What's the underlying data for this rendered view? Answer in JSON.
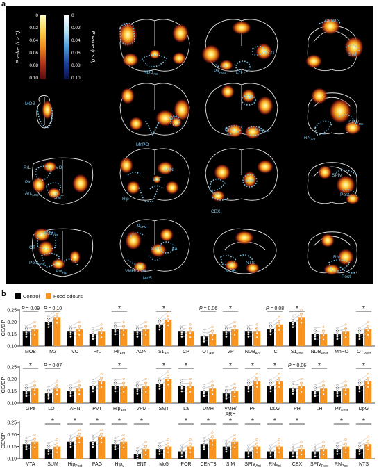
{
  "panel_a": {
    "letter": "a",
    "colorbar": {
      "pos_ticks": [
        "0",
        "0.02",
        "0.04",
        "0.06",
        "0.08",
        "0.10"
      ],
      "neg_ticks": [
        "0",
        "0.02",
        "0.04",
        "0.06",
        "0.08",
        "0.10"
      ],
      "pos_title": "P value (r > 0)",
      "neg_title": "P value (r < 0)",
      "pos_colors": [
        "#ffffbf",
        "#ffd24a",
        "#f08a18",
        "#b4301a",
        "#5a0c0c"
      ],
      "neg_colors": [
        "#ffffff",
        "#b8e2f4",
        "#4a9ad8",
        "#1e3f9c",
        "#0a0e4a"
      ]
    },
    "region_labels": [
      "S1",
      "NDB",
      "Ant",
      "Pir",
      "Post",
      "LH",
      "DLG",
      "CENT3",
      "SIM",
      "MOB",
      "MnPO",
      "OT",
      "Ant",
      "VTA",
      "DpG",
      "Hip",
      "Post",
      "RN",
      "Ant",
      "SPIV",
      "M2",
      "PrL",
      "VO",
      "Pir",
      "Ant",
      "AON",
      "SMT",
      "AHN",
      "LOT",
      "Hip",
      "v",
      "PAG",
      "ENT",
      "CBX",
      "SPIV",
      "Post",
      "S1",
      "Post",
      "CP",
      "OT",
      "Post",
      "NDB",
      "Ant",
      "Hip",
      "d",
      "VPM",
      "SMT",
      "La",
      "VMH/ARH",
      "Mo5",
      "POR",
      "NTS",
      "RN",
      "Post"
    ]
  },
  "panel_b": {
    "letter": "b",
    "legend": {
      "control_label": "Control",
      "food_label": "Food odours",
      "control_color": "#000000",
      "food_color": "#f7931e"
    },
    "y_label": "CE/CP",
    "y_ticks": [
      "0.10",
      "0.15",
      "0.20",
      "0.25"
    ]
  },
  "chart_data": [
    {
      "type": "bar",
      "title": "",
      "ylabel": "CE/CP",
      "ylim": [
        0.1,
        0.25
      ],
      "series": [
        {
          "name": "Control",
          "values": [
            0.16,
            0.2,
            0.16,
            0.15,
            0.17,
            0.16,
            0.19,
            0.16,
            0.14,
            0.16,
            0.16,
            0.17,
            0.2,
            0.15,
            0.15,
            0.15
          ]
        },
        {
          "name": "Food odours",
          "values": [
            0.17,
            0.22,
            0.17,
            0.16,
            0.17,
            0.17,
            0.21,
            0.16,
            0.15,
            0.17,
            0.16,
            0.19,
            0.22,
            0.15,
            0.16,
            0.17
          ]
        }
      ],
      "categories": [
        "MOB",
        "M2",
        "VO",
        "PrL",
        "Pir_Ant",
        "AON",
        "S1_Ant",
        "CP",
        "OT_Ant",
        "VP",
        "NDB_Ant",
        "IC",
        "S1_Post",
        "NDB_Post",
        "MnPO",
        "OT_Post"
      ],
      "category_labels": [
        [
          "MOB",
          ""
        ],
        [
          "M2",
          ""
        ],
        [
          "VO",
          ""
        ],
        [
          "PrL",
          ""
        ],
        [
          "Pir",
          "Ant"
        ],
        [
          "AON",
          ""
        ],
        [
          "S1",
          "Ant"
        ],
        [
          "CP",
          ""
        ],
        [
          "OT",
          "Ant"
        ],
        [
          "VP",
          ""
        ],
        [
          "NDB",
          "Ant"
        ],
        [
          "IC",
          ""
        ],
        [
          "S1",
          "Post"
        ],
        [
          "NDB",
          "Post"
        ],
        [
          "MnPO",
          ""
        ],
        [
          "OT",
          "Post"
        ]
      ],
      "annotations": [
        {
          "index": 0,
          "text": "P = 0.09"
        },
        {
          "index": 1,
          "text": "P = 0.10"
        },
        {
          "index": 4,
          "text": "*"
        },
        {
          "index": 6,
          "text": "*"
        },
        {
          "index": 8,
          "text": "P = 0.06"
        },
        {
          "index": 9,
          "text": "*"
        },
        {
          "index": 11,
          "text": "P = 0.08"
        },
        {
          "index": 12,
          "text": "*"
        },
        {
          "index": 15,
          "text": "*"
        }
      ]
    },
    {
      "type": "bar",
      "title": "",
      "ylabel": "CE/CP",
      "ylim": [
        0.1,
        0.25
      ],
      "series": [
        {
          "name": "Control",
          "values": [
            0.15,
            0.14,
            0.15,
            0.17,
            0.17,
            0.16,
            0.18,
            0.17,
            0.15,
            0.14,
            0.17,
            0.17,
            0.16,
            0.15,
            0.15,
            0.17
          ]
        },
        {
          "name": "Food odours",
          "values": [
            0.16,
            0.16,
            0.16,
            0.19,
            0.17,
            0.17,
            0.2,
            0.17,
            0.16,
            0.15,
            0.19,
            0.19,
            0.17,
            0.16,
            0.16,
            0.19
          ]
        }
      ],
      "categories": [
        "GPe",
        "LOT",
        "AHN",
        "PVT",
        "Hip_Ant",
        "VPM",
        "SMT",
        "La",
        "DMH",
        "VMH/ARH",
        "PF",
        "DLG",
        "PH",
        "LH",
        "Pir_Post",
        "DpG"
      ],
      "category_labels": [
        [
          "GPe",
          ""
        ],
        [
          "LOT",
          ""
        ],
        [
          "AHN",
          ""
        ],
        [
          "PVT",
          ""
        ],
        [
          "Hip",
          "Ant"
        ],
        [
          "VPM",
          ""
        ],
        [
          "SMT",
          ""
        ],
        [
          "La",
          ""
        ],
        [
          "DMH",
          ""
        ],
        [
          "VMH/",
          "ARH"
        ],
        [
          "PF",
          ""
        ],
        [
          "DLG",
          ""
        ],
        [
          "PH",
          ""
        ],
        [
          "LH",
          ""
        ],
        [
          "Pir",
          "Post"
        ],
        [
          "DpG",
          ""
        ]
      ],
      "annotations": [
        {
          "index": 0,
          "text": "*"
        },
        {
          "index": 1,
          "text": "P = 0.07"
        },
        {
          "index": 4,
          "text": "*"
        },
        {
          "index": 6,
          "text": "*"
        },
        {
          "index": 7,
          "text": "*"
        },
        {
          "index": 9,
          "text": "*"
        },
        {
          "index": 10,
          "text": "*"
        },
        {
          "index": 11,
          "text": "*"
        },
        {
          "index": 12,
          "text": "P = 0.06"
        },
        {
          "index": 13,
          "text": "*"
        },
        {
          "index": 15,
          "text": "*"
        }
      ]
    },
    {
      "type": "bar",
      "title": "",
      "ylabel": "CE/CP",
      "ylim": [
        0.1,
        0.25
      ],
      "series": [
        {
          "name": "Control",
          "values": [
            0.16,
            0.14,
            0.17,
            0.17,
            0.16,
            0.12,
            0.14,
            0.13,
            0.16,
            0.15,
            0.13,
            0.13,
            0.13,
            0.13,
            0.14,
            0.14
          ]
        },
        {
          "name": "Food odours",
          "values": [
            0.17,
            0.15,
            0.19,
            0.19,
            0.17,
            0.14,
            0.15,
            0.15,
            0.18,
            0.17,
            0.15,
            0.15,
            0.14,
            0.14,
            0.15,
            0.16
          ]
        }
      ],
      "categories": [
        "VTA",
        "SUM",
        "Hip_Post",
        "PAG",
        "Hip_v",
        "ENT",
        "Mo5",
        "POR",
        "CENT3",
        "SIM",
        "SPIV_Ant",
        "RN_Ant",
        "CBX",
        "SPIV_Post",
        "RN_Post",
        "NTS"
      ],
      "category_labels": [
        [
          "VTA",
          ""
        ],
        [
          "SUM",
          ""
        ],
        [
          "Hip",
          "Post"
        ],
        [
          "PAG",
          ""
        ],
        [
          "Hip",
          "v"
        ],
        [
          "ENT",
          ""
        ],
        [
          "Mo5",
          ""
        ],
        [
          "POR",
          ""
        ],
        [
          "CENT3",
          ""
        ],
        [
          "SIM",
          ""
        ],
        [
          "SPIV",
          "Ant"
        ],
        [
          "RN",
          "Ant"
        ],
        [
          "CBX",
          ""
        ],
        [
          "SPIV",
          "Post"
        ],
        [
          "RN",
          "Post"
        ],
        [
          "NTS",
          ""
        ]
      ],
      "annotations": [
        {
          "index": 1,
          "text": "*"
        },
        {
          "index": 2,
          "text": "*"
        },
        {
          "index": 3,
          "text": "*"
        },
        {
          "index": 4,
          "text": "*"
        },
        {
          "index": 5,
          "text": "*"
        },
        {
          "index": 7,
          "text": "*"
        },
        {
          "index": 8,
          "text": "*"
        },
        {
          "index": 9,
          "text": "*"
        },
        {
          "index": 10,
          "text": "*"
        },
        {
          "index": 11,
          "text": "*"
        },
        {
          "index": 12,
          "text": "*"
        },
        {
          "index": 14,
          "text": "*"
        },
        {
          "index": 15,
          "text": "*"
        }
      ]
    }
  ]
}
